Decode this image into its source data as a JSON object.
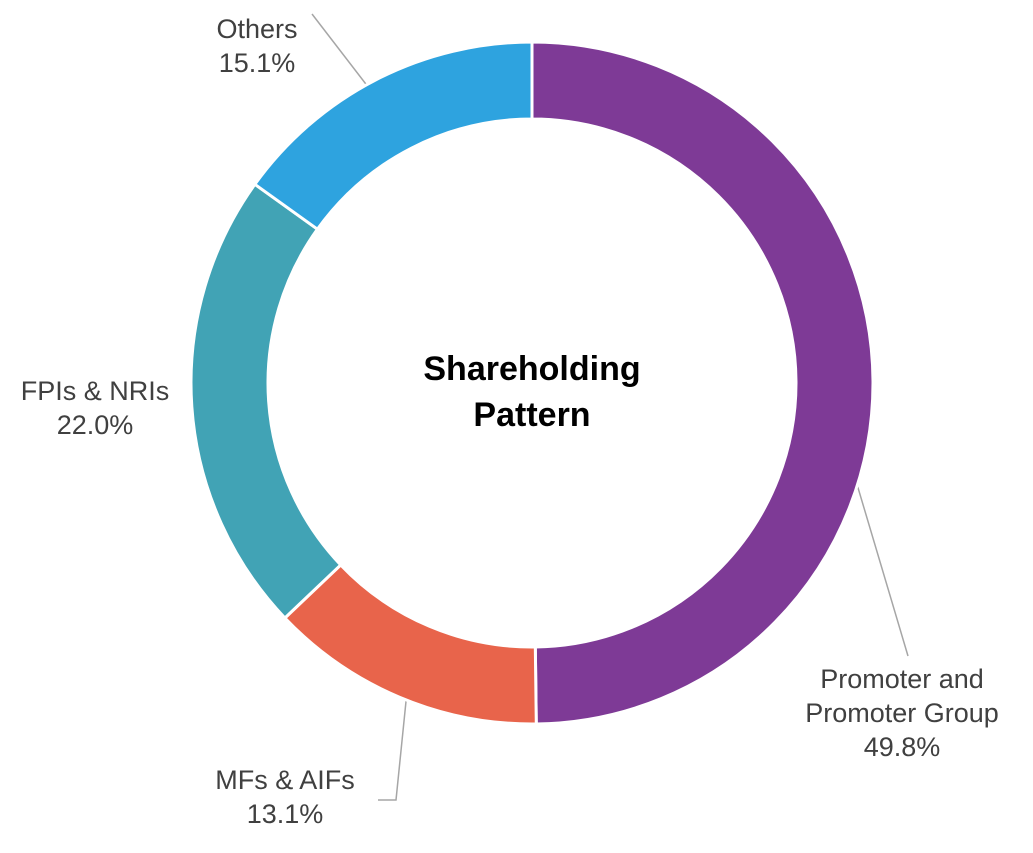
{
  "chart_data": {
    "type": "donut",
    "title": "Shareholding Pattern",
    "categories": [
      "Promoter and Promoter Group",
      "MFs & AIFs",
      "FPIs & NRIs",
      "Others"
    ],
    "values": [
      49.8,
      13.1,
      22.0,
      15.1
    ],
    "value_labels": [
      "49.8%",
      "13.1%",
      "22.0%",
      "15.1%"
    ],
    "colors": [
      "#7e3a96",
      "#e8644b",
      "#41a3b5",
      "#2ea3df"
    ]
  }
}
